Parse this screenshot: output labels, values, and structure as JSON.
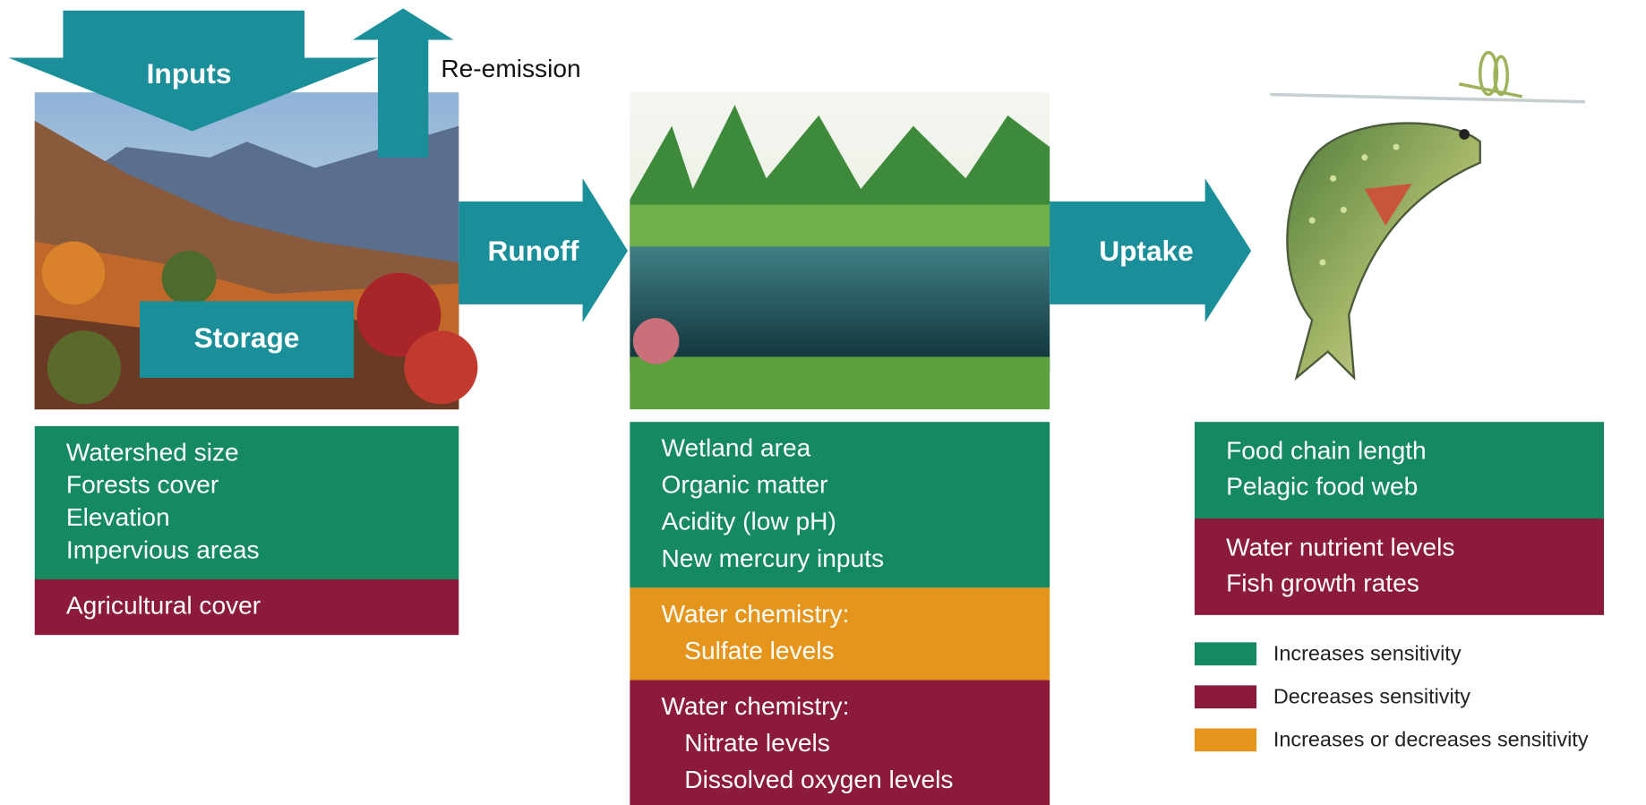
{
  "arrows": {
    "inputs": "Inputs",
    "re_emission": "Re-emission",
    "storage": "Storage",
    "runoff": "Runoff",
    "uptake": "Uptake"
  },
  "panels": [
    {
      "groups": [
        {
          "color": "#15895f",
          "items": [
            "Watershed size",
            "Forests cover",
            "Elevation",
            "Impervious areas"
          ]
        },
        {
          "color": "#8b1a3b",
          "items": [
            "Agricultural cover"
          ]
        }
      ]
    },
    {
      "groups": [
        {
          "color": "#15895f",
          "items": [
            "Wetland area",
            "Organic matter",
            "Acidity (low pH)",
            "New mercury inputs"
          ]
        },
        {
          "color": "#e6951c",
          "heading": "Water chemistry:",
          "items": [
            "Sulfate levels"
          ]
        },
        {
          "color": "#8b1a3b",
          "heading": "Water chemistry:",
          "items": [
            "Nitrate levels",
            "Dissolved oxygen levels"
          ]
        }
      ]
    },
    {
      "groups": [
        {
          "color": "#15895f",
          "items": [
            "Food chain length",
            "Pelagic food web"
          ]
        },
        {
          "color": "#8b1a3b",
          "items": [
            "Water nutrient levels",
            "Fish growth rates"
          ]
        }
      ]
    }
  ],
  "legend": [
    {
      "color": "#15895f",
      "label": "Increases sensitivity"
    },
    {
      "color": "#8b1a3b",
      "label": "Decreases sensitivity"
    },
    {
      "color": "#e6951c",
      "label": "Increases or decreases sensitivity"
    }
  ]
}
